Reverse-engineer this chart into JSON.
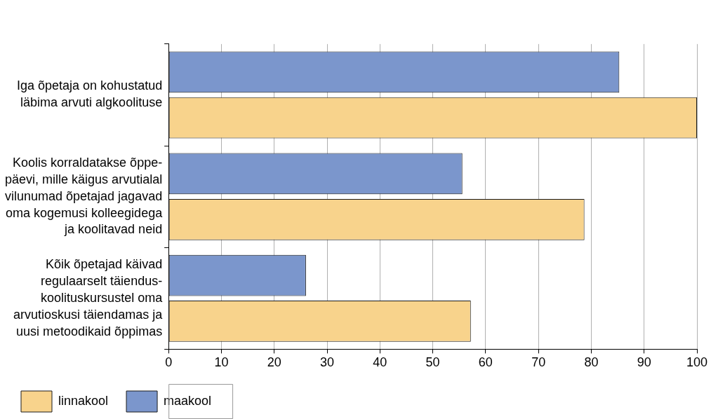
{
  "chart_data": {
    "type": "bar",
    "orientation": "horizontal",
    "categories": [
      "Iga õpetaja on kohustatud\nläbima arvuti algkoolituse",
      "Koolis korraldatakse õppe-\npäevi, mille käigus arvutialal\nvilunumad õpetajad jagavad\noma kogemusi kolleegidega\nja koolitavad neid",
      "Kõik õpetajad käivad\nregulaarselt täiendus-\nkoolituskursustel oma\narvutioskusi täiendamas ja\nuusi metoodikaid õppimas"
    ],
    "series": [
      {
        "name": "maakool",
        "color": "#7b96cc",
        "values": [
          85.3,
          55.6,
          26
        ]
      },
      {
        "name": "linnakool",
        "color": "#f8d38c",
        "values": [
          100,
          78.7,
          57.2
        ]
      }
    ],
    "xlim": [
      0,
      100
    ],
    "xticks": [
      0,
      10,
      20,
      30,
      40,
      50,
      60,
      70,
      80,
      90,
      100
    ],
    "grid": "x",
    "legend": "bottom left"
  }
}
